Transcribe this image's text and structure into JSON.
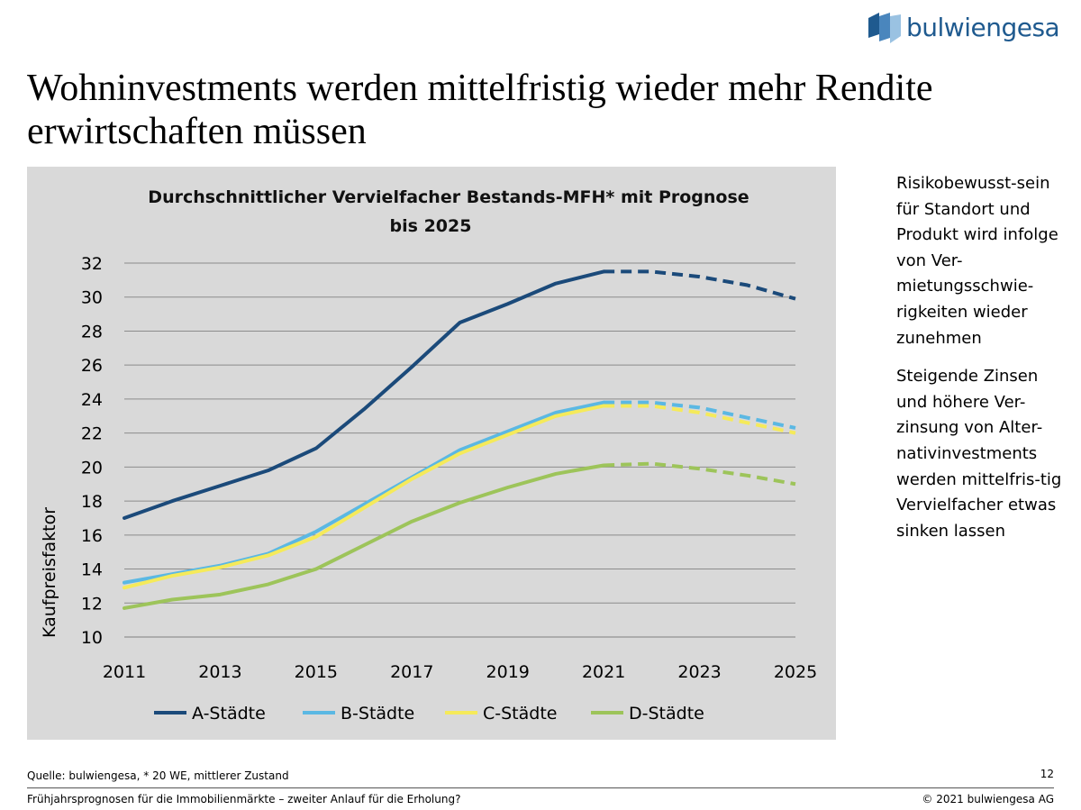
{
  "brand": {
    "name": "bulwiengesa"
  },
  "headline": "Wohninvestments werden mittelfristig wieder mehr Rendite erwirtschaften müssen",
  "side_text": [
    "Risikobewusst-sein für Standort und Produkt wird infolge von Ver-mietungsschwie-rigkeiten wieder zunehmen",
    "Steigende Zinsen und höhere Ver-zinsung von Alter-nativinvestments werden mittelfris-tig Vervielfacher etwas sinken lassen"
  ],
  "footer": {
    "source": "Quelle: bulwiengesa, * 20 WE, mittlerer Zustand",
    "page_number": "12",
    "left": "Frühjahrsprognosen für die Immobilienmärkte – zweiter Anlauf für die Erholung?",
    "right": "© 2021 bulwiengesa AG"
  },
  "chart_data": {
    "type": "line",
    "title": "Durchschnittlicher Vervielfacher Bestands-MFH* mit Prognose bis 2025",
    "title_lines": [
      "Durchschnittlicher Vervielfacher Bestands-MFH* mit Prognose",
      "bis 2025"
    ],
    "xlabel": "",
    "ylabel": "Kaufpreisfaktor",
    "x": [
      2011,
      2012,
      2013,
      2014,
      2015,
      2016,
      2017,
      2018,
      2019,
      2020,
      2021,
      2022,
      2023,
      2024,
      2025
    ],
    "x_ticks": [
      "2011",
      "2013",
      "2015",
      "2017",
      "2019",
      "2021",
      "2023",
      "2025"
    ],
    "y_ticks": [
      "10",
      "12",
      "14",
      "16",
      "18",
      "20",
      "22",
      "24",
      "26",
      "28",
      "30",
      "32"
    ],
    "ylim": [
      10,
      32
    ],
    "xlim": [
      2011,
      2025
    ],
    "grid": true,
    "forecast_from": 2021,
    "legend_position": "bottom",
    "series": [
      {
        "name": "A-Städte",
        "color": "#1b4a7a",
        "values": [
          17.0,
          18.0,
          18.9,
          19.8,
          21.1,
          23.4,
          25.9,
          28.5,
          29.6,
          30.8,
          31.5,
          31.5,
          31.2,
          30.7,
          29.9
        ]
      },
      {
        "name": "B-Städte",
        "color": "#5bb8e3",
        "values": [
          13.2,
          13.7,
          14.2,
          14.9,
          16.2,
          17.8,
          19.4,
          21.0,
          22.1,
          23.2,
          23.8,
          23.8,
          23.5,
          22.9,
          22.3
        ]
      },
      {
        "name": "C-Städte",
        "color": "#f5ea5a",
        "values": [
          12.9,
          13.6,
          14.1,
          14.8,
          15.9,
          17.6,
          19.3,
          20.8,
          21.9,
          23.0,
          23.6,
          23.6,
          23.2,
          22.6,
          22.0
        ]
      },
      {
        "name": "D-Städte",
        "color": "#9dc45a",
        "values": [
          11.7,
          12.2,
          12.5,
          13.1,
          14.0,
          15.4,
          16.8,
          17.9,
          18.8,
          19.6,
          20.1,
          20.2,
          19.9,
          19.5,
          19.0
        ]
      }
    ]
  }
}
